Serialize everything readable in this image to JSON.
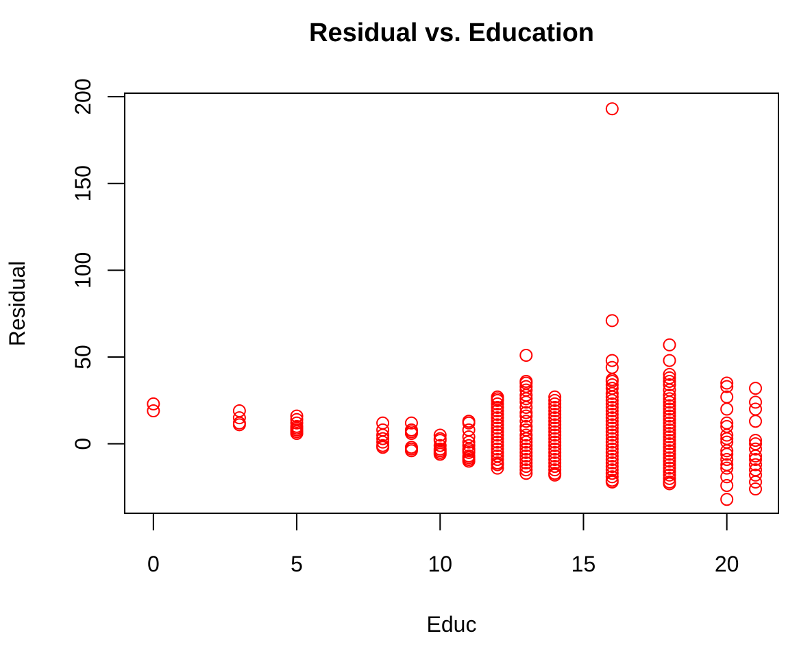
{
  "chart_data": {
    "type": "scatter",
    "title": "Residual vs. Education",
    "xlabel": "Educ",
    "ylabel": "Residual",
    "xlim": [
      -1,
      21.8
    ],
    "ylim": [
      -40,
      202
    ],
    "x_ticks": [
      0,
      5,
      10,
      15,
      20
    ],
    "y_ticks": [
      0,
      50,
      100,
      150,
      200
    ],
    "grid": false,
    "marker": "open-circle",
    "color": "#ff0000",
    "series": [
      {
        "points": [
          [
            0,
            23
          ],
          [
            0,
            19
          ],
          [
            3,
            19
          ],
          [
            3,
            15
          ],
          [
            3,
            12
          ],
          [
            3,
            11
          ],
          [
            5,
            16
          ],
          [
            5,
            14
          ],
          [
            5,
            12
          ],
          [
            5,
            10
          ],
          [
            5,
            9
          ],
          [
            5,
            8
          ],
          [
            5,
            7
          ],
          [
            5,
            6
          ],
          [
            8,
            12
          ],
          [
            8,
            8
          ],
          [
            8,
            5
          ],
          [
            8,
            3
          ],
          [
            8,
            1
          ],
          [
            8,
            -1
          ],
          [
            8,
            -2
          ],
          [
            9,
            12
          ],
          [
            9,
            8
          ],
          [
            9,
            7
          ],
          [
            9,
            6
          ],
          [
            9,
            -2
          ],
          [
            9,
            -3
          ],
          [
            9,
            -4
          ],
          [
            10,
            5
          ],
          [
            10,
            3
          ],
          [
            10,
            2
          ],
          [
            10,
            -1
          ],
          [
            10,
            -3
          ],
          [
            10,
            -4
          ],
          [
            10,
            -5
          ],
          [
            10,
            -6
          ],
          [
            11,
            13
          ],
          [
            11,
            12
          ],
          [
            11,
            8
          ],
          [
            11,
            4
          ],
          [
            11,
            1
          ],
          [
            11,
            -1
          ],
          [
            11,
            -3
          ],
          [
            11,
            -4
          ],
          [
            11,
            -5
          ],
          [
            11,
            -7
          ],
          [
            11,
            -8
          ],
          [
            11,
            -9
          ],
          [
            11,
            -10
          ],
          [
            12,
            27
          ],
          [
            12,
            26
          ],
          [
            12,
            25
          ],
          [
            12,
            23
          ],
          [
            12,
            21
          ],
          [
            12,
            19
          ],
          [
            12,
            17
          ],
          [
            12,
            15
          ],
          [
            12,
            13
          ],
          [
            12,
            11
          ],
          [
            12,
            9
          ],
          [
            12,
            7
          ],
          [
            12,
            5
          ],
          [
            12,
            3
          ],
          [
            12,
            1
          ],
          [
            12,
            -1
          ],
          [
            12,
            -3
          ],
          [
            12,
            -5
          ],
          [
            12,
            -7
          ],
          [
            12,
            -9
          ],
          [
            12,
            -11
          ],
          [
            12,
            -12
          ],
          [
            12,
            -14
          ],
          [
            13,
            51
          ],
          [
            13,
            36
          ],
          [
            13,
            35
          ],
          [
            13,
            33
          ],
          [
            13,
            31
          ],
          [
            13,
            28
          ],
          [
            13,
            26
          ],
          [
            13,
            24
          ],
          [
            13,
            21
          ],
          [
            13,
            18
          ],
          [
            13,
            16
          ],
          [
            13,
            13
          ],
          [
            13,
            10
          ],
          [
            13,
            8
          ],
          [
            13,
            5
          ],
          [
            13,
            3
          ],
          [
            13,
            1
          ],
          [
            13,
            -1
          ],
          [
            13,
            -3
          ],
          [
            13,
            -5
          ],
          [
            13,
            -7
          ],
          [
            13,
            -9
          ],
          [
            13,
            -11
          ],
          [
            13,
            -13
          ],
          [
            13,
            -15
          ],
          [
            13,
            -17
          ],
          [
            14,
            27
          ],
          [
            14,
            25
          ],
          [
            14,
            23
          ],
          [
            14,
            21
          ],
          [
            14,
            19
          ],
          [
            14,
            17
          ],
          [
            14,
            15
          ],
          [
            14,
            13
          ],
          [
            14,
            11
          ],
          [
            14,
            9
          ],
          [
            14,
            7
          ],
          [
            14,
            5
          ],
          [
            14,
            3
          ],
          [
            14,
            1
          ],
          [
            14,
            -1
          ],
          [
            14,
            -3
          ],
          [
            14,
            -5
          ],
          [
            14,
            -7
          ],
          [
            14,
            -9
          ],
          [
            14,
            -11
          ],
          [
            14,
            -13
          ],
          [
            14,
            -15
          ],
          [
            14,
            -17
          ],
          [
            14,
            -18
          ],
          [
            16,
            193
          ],
          [
            16,
            71
          ],
          [
            16,
            48
          ],
          [
            16,
            44
          ],
          [
            16,
            37
          ],
          [
            16,
            36
          ],
          [
            16,
            34
          ],
          [
            16,
            32
          ],
          [
            16,
            29
          ],
          [
            16,
            27
          ],
          [
            16,
            25
          ],
          [
            16,
            23
          ],
          [
            16,
            21
          ],
          [
            16,
            19
          ],
          [
            16,
            17
          ],
          [
            16,
            15
          ],
          [
            16,
            13
          ],
          [
            16,
            11
          ],
          [
            16,
            9
          ],
          [
            16,
            7
          ],
          [
            16,
            5
          ],
          [
            16,
            3
          ],
          [
            16,
            1
          ],
          [
            16,
            -1
          ],
          [
            16,
            -3
          ],
          [
            16,
            -5
          ],
          [
            16,
            -7
          ],
          [
            16,
            -9
          ],
          [
            16,
            -11
          ],
          [
            16,
            -13
          ],
          [
            16,
            -15
          ],
          [
            16,
            -17
          ],
          [
            16,
            -19
          ],
          [
            16,
            -21
          ],
          [
            16,
            -22
          ],
          [
            18,
            57
          ],
          [
            18,
            48
          ],
          [
            18,
            40
          ],
          [
            18,
            38
          ],
          [
            18,
            36
          ],
          [
            18,
            34
          ],
          [
            18,
            31
          ],
          [
            18,
            28
          ],
          [
            18,
            26
          ],
          [
            18,
            24
          ],
          [
            18,
            22
          ],
          [
            18,
            20
          ],
          [
            18,
            18
          ],
          [
            18,
            16
          ],
          [
            18,
            14
          ],
          [
            18,
            12
          ],
          [
            18,
            10
          ],
          [
            18,
            8
          ],
          [
            18,
            6
          ],
          [
            18,
            4
          ],
          [
            18,
            2
          ],
          [
            18,
            0
          ],
          [
            18,
            -2
          ],
          [
            18,
            -4
          ],
          [
            18,
            -6
          ],
          [
            18,
            -8
          ],
          [
            18,
            -10
          ],
          [
            18,
            -12
          ],
          [
            18,
            -14
          ],
          [
            18,
            -16
          ],
          [
            18,
            -18
          ],
          [
            18,
            -20
          ],
          [
            18,
            -22
          ],
          [
            18,
            -23
          ],
          [
            20,
            35
          ],
          [
            20,
            33
          ],
          [
            20,
            27
          ],
          [
            20,
            20
          ],
          [
            20,
            12
          ],
          [
            20,
            10
          ],
          [
            20,
            5
          ],
          [
            20,
            3
          ],
          [
            20,
            1
          ],
          [
            20,
            -4
          ],
          [
            20,
            -6
          ],
          [
            20,
            -9
          ],
          [
            20,
            -12
          ],
          [
            20,
            -14
          ],
          [
            20,
            -19
          ],
          [
            20,
            -24
          ],
          [
            20,
            -32
          ],
          [
            21,
            32
          ],
          [
            21,
            24
          ],
          [
            21,
            20
          ],
          [
            21,
            13
          ],
          [
            21,
            2
          ],
          [
            21,
            0
          ],
          [
            21,
            -3
          ],
          [
            21,
            -7
          ],
          [
            21,
            -9
          ],
          [
            21,
            -12
          ],
          [
            21,
            -15
          ],
          [
            21,
            -18
          ],
          [
            21,
            -22
          ],
          [
            21,
            -26
          ]
        ]
      }
    ]
  }
}
